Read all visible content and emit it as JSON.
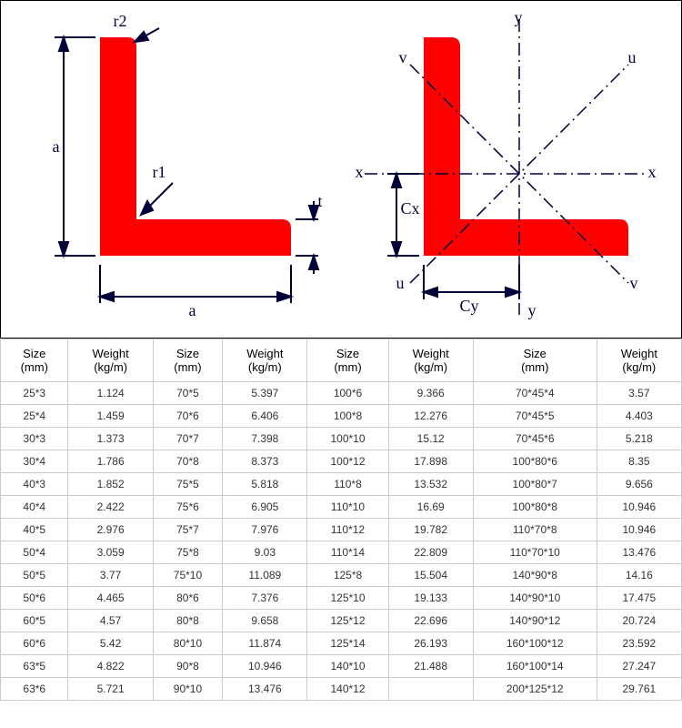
{
  "diagrams": {
    "left": {
      "angle_color": "#ff0000",
      "line_color": "#000039",
      "labels": {
        "r2": "r2",
        "r1": "r1",
        "a_vert": "a",
        "a_horiz": "a",
        "t": "t"
      }
    },
    "right": {
      "angle_color": "#ff0000",
      "line_color": "#000039",
      "labels": {
        "y_top": "y",
        "y_bot": "y",
        "x_left": "x",
        "x_right": "x",
        "u_tl": "u",
        "u_br": "v",
        "v_tr": "u",
        "v_bl": "v",
        "cx": "Cx",
        "cy": "Cy"
      }
    }
  },
  "table": {
    "headers": [
      "Size (mm)",
      "Weight (kg/m)",
      "Size (mm)",
      "Weight (kg/m)",
      "Size (mm)",
      "Weight (kg/m)",
      "Size (mm)",
      "Weight (kg/m)"
    ],
    "rows": [
      [
        "25*3",
        "1.124",
        "70*5",
        "5.397",
        "100*6",
        "9.366",
        "70*45*4",
        "3.57"
      ],
      [
        "25*4",
        "1.459",
        "70*6",
        "6.406",
        "100*8",
        "12.276",
        "70*45*5",
        "4.403"
      ],
      [
        "30*3",
        "1.373",
        "70*7",
        "7.398",
        "100*10",
        "15.12",
        "70*45*6",
        "5.218"
      ],
      [
        "30*4",
        "1.786",
        "70*8",
        "8.373",
        "100*12",
        "17.898",
        "100*80*6",
        "8.35"
      ],
      [
        "40*3",
        "1.852",
        "75*5",
        "5.818",
        "110*8",
        "13.532",
        "100*80*7",
        "9.656"
      ],
      [
        "40*4",
        "2.422",
        "75*6",
        "6.905",
        "110*10",
        "16.69",
        "100*80*8",
        "10.946"
      ],
      [
        "40*5",
        "2.976",
        "75*7",
        "7.976",
        "110*12",
        "19.782",
        "110*70*8",
        "10.946"
      ],
      [
        "50*4",
        "3.059",
        "75*8",
        "9.03",
        "110*14",
        "22.809",
        "110*70*10",
        "13.476"
      ],
      [
        "50*5",
        "3.77",
        "75*10",
        "11.089",
        "125*8",
        "15.504",
        "140*90*8",
        "14.16"
      ],
      [
        "50*6",
        "4.465",
        "80*6",
        "7.376",
        "125*10",
        "19.133",
        "140*90*10",
        "17.475"
      ],
      [
        "60*5",
        "4.57",
        "80*8",
        "9.658",
        "125*12",
        "22.696",
        "140*90*12",
        "20.724"
      ],
      [
        "60*6",
        "5.42",
        "80*10",
        "11.874",
        "125*14",
        "26.193",
        "160*100*12",
        "23.592"
      ],
      [
        "63*5",
        "4.822",
        "90*8",
        "10.946",
        "140*10",
        "21.488",
        "160*100*14",
        "27.247"
      ],
      [
        "63*6",
        "5.721",
        "90*10",
        "13.476",
        "140*12",
        "",
        "200*125*12",
        "29.761"
      ]
    ]
  }
}
